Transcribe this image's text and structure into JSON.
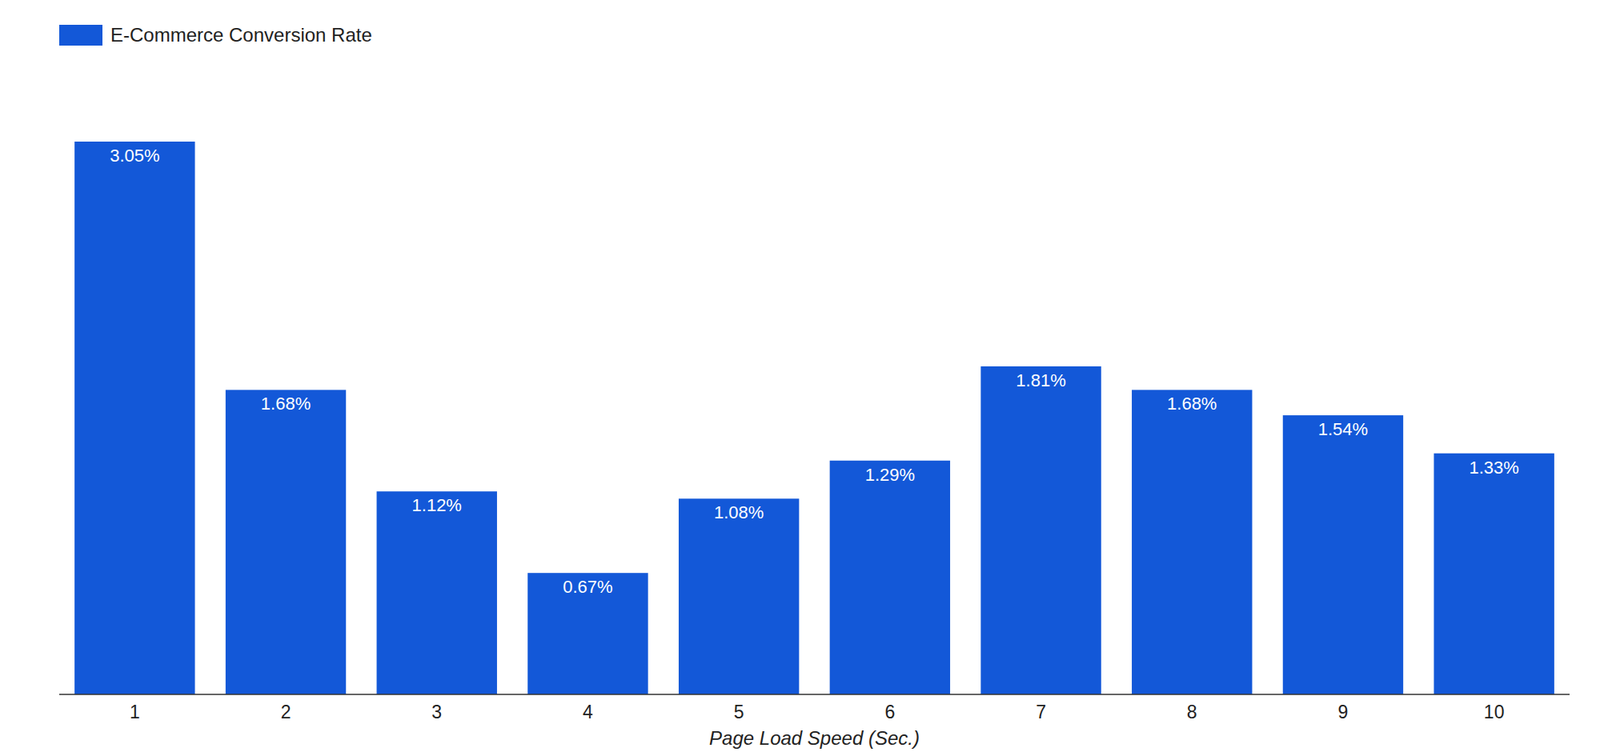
{
  "chart_data": {
    "type": "bar",
    "x_label": "Page Load Speed (Sec.)",
    "categories": [
      "1",
      "2",
      "3",
      "4",
      "5",
      "6",
      "7",
      "8",
      "9",
      "10"
    ],
    "series": [
      {
        "name": "E-Commerce Conversion Rate",
        "color": "#1358d8",
        "values": [
          3.05,
          1.68,
          1.12,
          0.67,
          1.08,
          1.29,
          1.81,
          1.68,
          1.54,
          1.33
        ],
        "value_labels": [
          "3.05%",
          "1.68%",
          "1.12%",
          "0.67%",
          "1.08%",
          "1.29%",
          "1.81%",
          "1.68%",
          "1.54%",
          "1.33%"
        ]
      }
    ],
    "ylim": [
      0,
      3.05
    ],
    "grid": false,
    "legend": "top-left",
    "data_labels": true,
    "tick_labels": "x"
  }
}
